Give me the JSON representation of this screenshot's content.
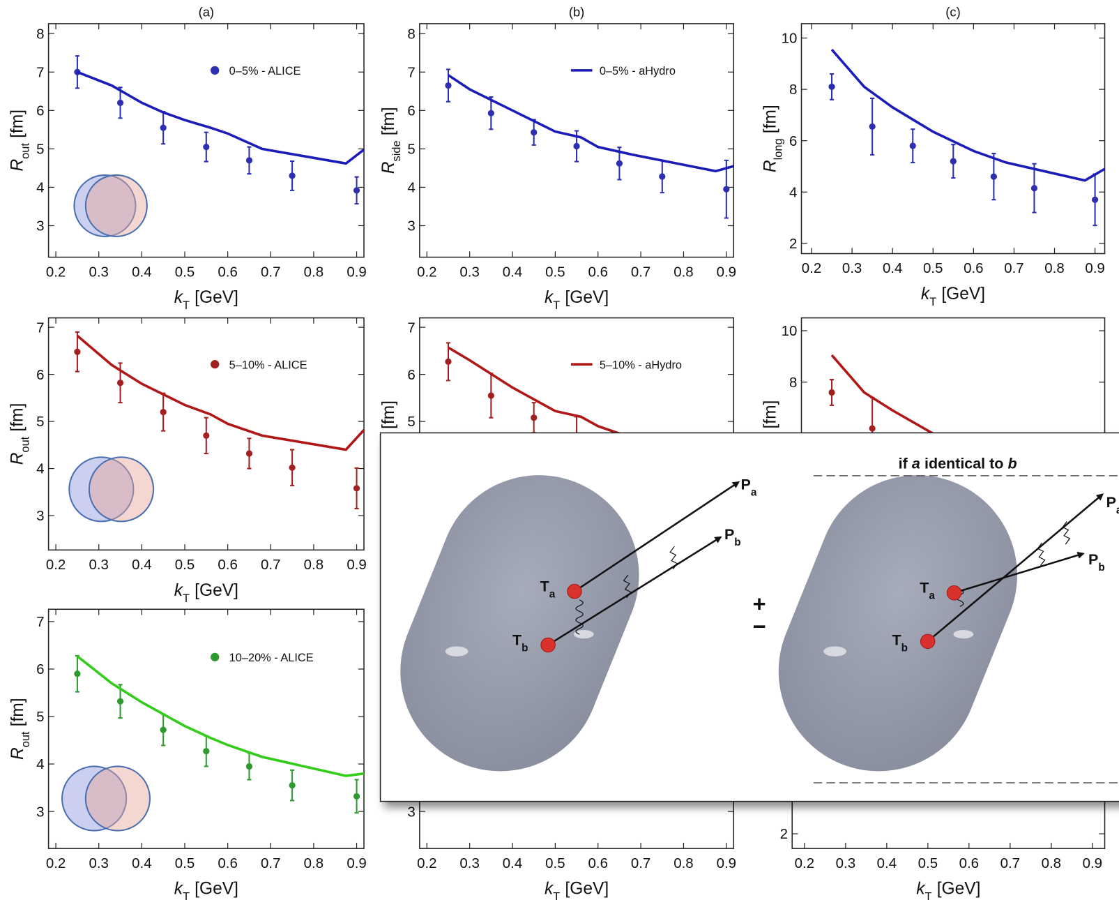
{
  "chart_data": [
    {
      "type": "line",
      "title": "(a)",
      "xlabel": [
        "k",
        "T",
        "[GeV]"
      ],
      "ylabel": [
        "R",
        "out",
        "[fm]"
      ],
      "xlim": [
        0.183,
        0.917
      ],
      "ylim": [
        2.18,
        8.26
      ],
      "xticks": [
        0.2,
        0.3,
        0.4,
        0.5,
        0.6,
        0.7,
        0.8,
        0.9
      ],
      "yticks": [
        3,
        4,
        5,
        6,
        7,
        8
      ],
      "legend": "upper right",
      "series": [
        {
          "name": "0–5% - ALICE",
          "kind": "errorbar",
          "color": "#2b2fb0",
          "x": [
            0.25,
            0.35,
            0.45,
            0.55,
            0.65,
            0.75,
            0.9
          ],
          "values": [
            7.0,
            6.2,
            5.55,
            5.05,
            4.7,
            4.3,
            3.92
          ],
          "errors": [
            0.42,
            0.4,
            0.42,
            0.38,
            0.35,
            0.38,
            0.35
          ]
        },
        {
          "kind": "line",
          "color": "#1c1cb8",
          "x": [
            0.25,
            0.33,
            0.4,
            0.45,
            0.5,
            0.56,
            0.6,
            0.68,
            0.875,
            0.917
          ],
          "values": [
            7.0,
            6.65,
            6.2,
            5.95,
            5.75,
            5.55,
            5.4,
            5.0,
            4.62,
            4.98
          ]
        }
      ]
    },
    {
      "type": "line",
      "title": "(b)",
      "xlabel": [
        "k",
        "T",
        "[GeV]"
      ],
      "ylabel": [
        "R",
        "side",
        "[fm]"
      ],
      "xlim": [
        0.183,
        0.917
      ],
      "ylim": [
        2.18,
        8.26
      ],
      "xticks": [
        0.2,
        0.3,
        0.4,
        0.5,
        0.6,
        0.7,
        0.8,
        0.9
      ],
      "yticks": [
        3,
        4,
        5,
        6,
        7,
        8
      ],
      "legend": "upper right",
      "series": [
        {
          "kind": "errorbar",
          "color": "#2b2fb0",
          "x": [
            0.25,
            0.35,
            0.45,
            0.55,
            0.65,
            0.75,
            0.9
          ],
          "values": [
            6.65,
            5.93,
            5.43,
            5.07,
            4.62,
            4.28,
            3.95
          ],
          "errors": [
            0.42,
            0.42,
            0.33,
            0.4,
            0.42,
            0.42,
            0.75
          ]
        },
        {
          "name": "0–5% - aHydro",
          "kind": "line",
          "color": "#1c1cb8",
          "x": [
            0.25,
            0.3,
            0.4,
            0.5,
            0.56,
            0.6,
            0.68,
            0.875,
            0.917
          ],
          "values": [
            6.92,
            6.55,
            6.0,
            5.45,
            5.3,
            5.05,
            4.85,
            4.42,
            4.55
          ]
        }
      ]
    },
    {
      "type": "line",
      "title": "(c)",
      "xlabel": [
        "k",
        "T",
        "[GeV]"
      ],
      "ylabel": [
        "R",
        "long",
        "[fm]"
      ],
      "xlim": [
        0.175,
        0.924
      ],
      "ylim": [
        1.6,
        10.56
      ],
      "xticks": [
        0.2,
        0.3,
        0.4,
        0.5,
        0.6,
        0.7,
        0.8,
        0.9
      ],
      "yticks": [
        2,
        4,
        6,
        8,
        10
      ],
      "series": [
        {
          "kind": "errorbar",
          "color": "#2b2fb0",
          "x": [
            0.25,
            0.35,
            0.45,
            0.55,
            0.65,
            0.75,
            0.9
          ],
          "values": [
            8.1,
            6.55,
            5.8,
            5.2,
            4.6,
            4.15,
            3.7
          ],
          "errors": [
            0.5,
            1.1,
            0.65,
            0.65,
            0.9,
            0.95,
            1.0
          ]
        },
        {
          "kind": "line",
          "color": "#1c1cb8",
          "x": [
            0.25,
            0.33,
            0.4,
            0.5,
            0.56,
            0.6,
            0.68,
            0.875,
            0.924
          ],
          "values": [
            9.55,
            8.1,
            7.3,
            6.35,
            5.9,
            5.6,
            5.15,
            4.45,
            4.9
          ]
        }
      ]
    },
    {
      "type": "line",
      "xlabel": [
        "k",
        "T",
        "[GeV]"
      ],
      "ylabel": [
        "R",
        "out",
        "[fm]"
      ],
      "xlim": [
        0.183,
        0.917
      ],
      "ylim": [
        2.27,
        7.2
      ],
      "xticks": [
        0.2,
        0.3,
        0.4,
        0.5,
        0.6,
        0.7,
        0.8,
        0.9
      ],
      "yticks": [
        3,
        4,
        5,
        6,
        7
      ],
      "legend": "upper right",
      "series": [
        {
          "name": "5–10% - ALICE",
          "kind": "errorbar",
          "color": "#a32020",
          "x": [
            0.25,
            0.35,
            0.45,
            0.55,
            0.65,
            0.75,
            0.9
          ],
          "values": [
            6.48,
            5.82,
            5.2,
            4.7,
            4.32,
            4.02,
            3.58
          ],
          "errors": [
            0.42,
            0.42,
            0.4,
            0.38,
            0.32,
            0.38,
            0.43
          ]
        },
        {
          "kind": "line",
          "color": "#b01818",
          "x": [
            0.25,
            0.33,
            0.4,
            0.5,
            0.56,
            0.6,
            0.68,
            0.875,
            0.917
          ],
          "values": [
            6.82,
            6.2,
            5.8,
            5.35,
            5.15,
            4.95,
            4.7,
            4.4,
            4.82
          ]
        }
      ]
    },
    {
      "type": "line",
      "ylabel": [
        "R",
        "side",
        "[fm]"
      ],
      "xlim": [
        0.183,
        0.917
      ],
      "ylim": [
        2.27,
        7.2
      ],
      "yticks": [
        5,
        6,
        7
      ],
      "legend": "upper right",
      "series": [
        {
          "kind": "errorbar",
          "color": "#a32020",
          "x": [
            0.25,
            0.35,
            0.45,
            0.55
          ],
          "values": [
            6.27,
            5.55,
            5.08,
            4.7
          ],
          "errors": [
            0.4,
            0.47,
            0.32,
            0.4
          ]
        },
        {
          "name": "5–10% - aHydro",
          "kind": "line",
          "color": "#b01818",
          "x": [
            0.25,
            0.3,
            0.4,
            0.5,
            0.56,
            0.6,
            0.68
          ],
          "values": [
            6.57,
            6.3,
            5.72,
            5.22,
            5.1,
            4.9,
            4.65
          ]
        }
      ]
    },
    {
      "type": "line",
      "ylabel": [
        "R",
        "long",
        "[fm]"
      ],
      "xlim": [
        0.175,
        0.924
      ],
      "ylim": [
        1.47,
        10.5
      ],
      "yticks": [
        8,
        10
      ],
      "series": [
        {
          "kind": "errorbar",
          "color": "#a32020",
          "x": [
            0.25,
            0.35
          ],
          "values": [
            7.6,
            6.2
          ],
          "errors": [
            0.5,
            1.2
          ]
        },
        {
          "kind": "line",
          "color": "#b01818",
          "x": [
            0.25,
            0.33,
            0.4,
            0.5
          ],
          "values": [
            9.05,
            7.6,
            6.9,
            6.0
          ]
        }
      ]
    },
    {
      "type": "line",
      "xlabel": [
        "k",
        "T",
        "[GeV]"
      ],
      "ylabel": [
        "R",
        "out",
        "[fm]"
      ],
      "xlim": [
        0.183,
        0.917
      ],
      "ylim": [
        2.22,
        7.26
      ],
      "xticks": [
        0.2,
        0.3,
        0.4,
        0.5,
        0.6,
        0.7,
        0.8,
        0.9
      ],
      "yticks": [
        3,
        4,
        5,
        6,
        7
      ],
      "legend": "upper right",
      "series": [
        {
          "name": "10–20% - ALICE",
          "kind": "errorbar",
          "color": "#2e9a2e",
          "x": [
            0.25,
            0.35,
            0.45,
            0.55,
            0.65,
            0.75,
            0.9
          ],
          "values": [
            5.9,
            5.32,
            4.72,
            4.27,
            3.95,
            3.55,
            3.32
          ],
          "errors": [
            0.38,
            0.35,
            0.33,
            0.32,
            0.28,
            0.32,
            0.35
          ]
        },
        {
          "kind": "line",
          "color": "#33cc1a",
          "x": [
            0.25,
            0.33,
            0.4,
            0.5,
            0.56,
            0.6,
            0.68,
            0.875,
            0.917
          ],
          "values": [
            6.27,
            5.7,
            5.3,
            4.8,
            4.55,
            4.4,
            4.15,
            3.75,
            3.8
          ]
        }
      ]
    },
    {
      "type": "line",
      "xlabel": [
        "k",
        "T",
        "[GeV]"
      ],
      "xlim": [
        0.183,
        0.917
      ],
      "ylim": [
        2.22,
        7.26
      ],
      "xticks": [
        0.2,
        0.3,
        0.4,
        0.5,
        0.6,
        0.7,
        0.8,
        0.9
      ],
      "yticks": [
        3
      ]
    },
    {
      "type": "line",
      "xlabel": [
        "k",
        "T",
        "[GeV]"
      ],
      "xlim": [
        0.17,
        0.93
      ],
      "ylim": [
        1.43,
        10.7
      ],
      "xticks": [
        0.2,
        0.3,
        0.4,
        0.5,
        0.6,
        0.7,
        0.8,
        0.9
      ],
      "yticks": [
        2
      ]
    }
  ],
  "diagram": {
    "heading": [
      "if",
      "a",
      "identical to",
      "b"
    ],
    "labels": [
      [
        "T",
        "a"
      ],
      [
        "T",
        "b"
      ],
      [
        "P",
        "a"
      ],
      [
        "P",
        "b"
      ],
      [
        "T",
        "a"
      ],
      [
        "T",
        "b"
      ],
      [
        "P",
        "a"
      ],
      [
        "P",
        "b"
      ]
    ],
    "signs": [
      "+",
      "−"
    ]
  }
}
